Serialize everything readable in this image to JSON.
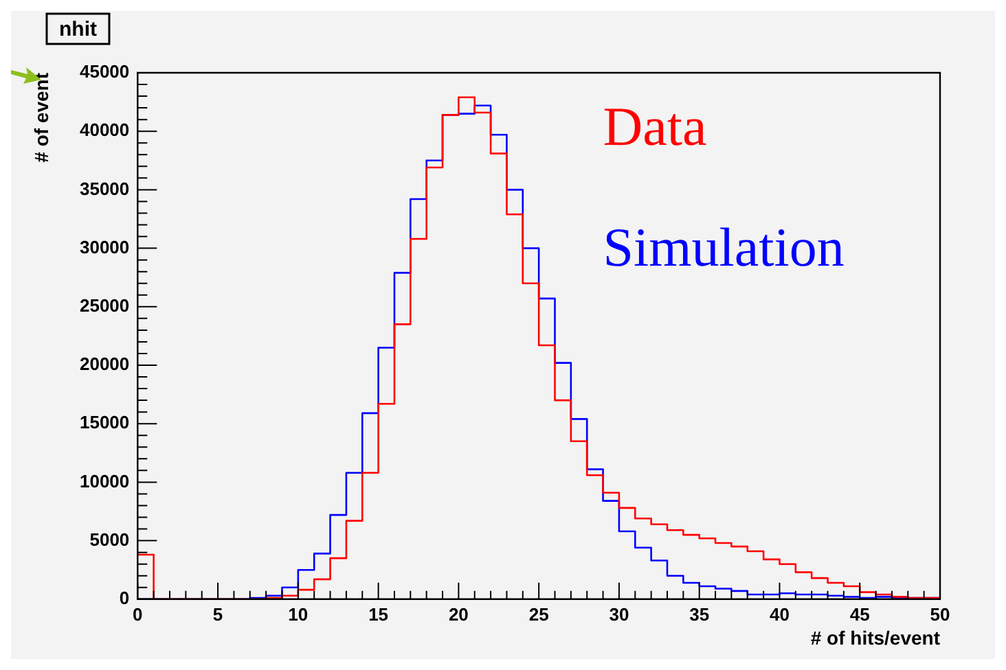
{
  "chart_data": {
    "type": "histogram",
    "title": "nhit",
    "xlabel": "# of hits/event",
    "ylabel": "# of event",
    "bins": [
      0,
      1,
      2,
      3,
      4,
      5,
      6,
      7,
      8,
      9,
      10,
      11,
      12,
      13,
      14,
      15,
      16,
      17,
      18,
      19,
      20,
      21,
      22,
      23,
      24,
      25,
      26,
      27,
      28,
      29,
      30,
      31,
      32,
      33,
      34,
      35,
      36,
      37,
      38,
      39,
      40,
      41,
      42,
      43,
      44,
      45,
      46,
      47,
      48,
      49,
      50
    ],
    "series": [
      {
        "name": "Data",
        "color": "#ff0000",
        "values": [
          3800,
          0,
          0,
          0,
          0,
          0,
          0,
          0,
          100,
          300,
          800,
          1700,
          3500,
          6700,
          10800,
          16700,
          23500,
          30800,
          36900,
          41400,
          42900,
          41600,
          38100,
          32900,
          27000,
          21700,
          17000,
          13500,
          10600,
          9100,
          7800,
          6900,
          6400,
          5900,
          5500,
          5200,
          4800,
          4500,
          4100,
          3400,
          3000,
          2300,
          1800,
          1400,
          1100,
          600,
          400,
          200,
          100,
          100
        ]
      },
      {
        "name": "Simulation",
        "color": "#0000ff",
        "values": [
          0,
          0,
          0,
          0,
          0,
          0,
          0,
          100,
          300,
          1000,
          2500,
          3900,
          7200,
          10800,
          15900,
          21500,
          27900,
          34200,
          37500,
          41400,
          41500,
          42200,
          39700,
          35000,
          30000,
          25700,
          20200,
          15400,
          11100,
          8400,
          5800,
          4400,
          3300,
          2000,
          1400,
          1100,
          900,
          700,
          400,
          400,
          500,
          400,
          400,
          300,
          200,
          100,
          200,
          100,
          100,
          100
        ]
      }
    ],
    "xlim": [
      0,
      50
    ],
    "xticks": [
      0,
      {
        "value": 1,
        "label": null
      },
      {
        "value": 2,
        "label": null
      },
      {
        "value": 3,
        "label": null
      },
      {
        "value": 4,
        "label": null
      },
      5,
      {
        "value": 6,
        "label": null
      },
      {
        "value": 7,
        "label": null
      },
      {
        "value": 8,
        "label": null
      },
      {
        "value": 9,
        "label": null
      },
      10,
      {
        "value": 11,
        "label": null
      },
      {
        "value": 12,
        "label": null
      },
      {
        "value": 13,
        "label": null
      },
      {
        "value": 14,
        "label": null
      },
      15,
      {
        "value": 16,
        "label": null
      },
      {
        "value": 17,
        "label": null
      },
      {
        "value": 18,
        "label": null
      },
      {
        "value": 19,
        "label": null
      },
      20,
      {
        "value": 21,
        "label": null
      },
      {
        "value": 22,
        "label": null
      },
      {
        "value": 23,
        "label": null
      },
      {
        "value": 24,
        "label": null
      },
      25,
      {
        "value": 26,
        "label": null
      },
      {
        "value": 27,
        "label": null
      },
      {
        "value": 28,
        "label": null
      },
      {
        "value": 29,
        "label": null
      },
      30,
      {
        "value": 31,
        "label": null
      },
      {
        "value": 32,
        "label": null
      },
      {
        "value": 33,
        "label": null
      },
      {
        "value": 34,
        "label": null
      },
      35,
      {
        "value": 36,
        "label": null
      },
      {
        "value": 37,
        "label": null
      },
      {
        "value": 38,
        "label": null
      },
      {
        "value": 39,
        "label": null
      },
      40,
      {
        "value": 41,
        "label": null
      },
      {
        "value": 42,
        "label": null
      },
      {
        "value": 43,
        "label": null
      },
      {
        "value": 44,
        "label": null
      },
      45,
      {
        "value": 46,
        "label": null
      },
      {
        "value": 47,
        "label": null
      },
      {
        "value": 48,
        "label": null
      },
      {
        "value": 49,
        "label": null
      },
      50
    ],
    "ylim": [
      0,
      45000
    ],
    "yticks": [
      0,
      {
        "value": 1000,
        "label": null
      },
      {
        "value": 2000,
        "label": null
      },
      {
        "value": 3000,
        "label": null
      },
      {
        "value": 4000,
        "label": null
      },
      5000,
      {
        "value": 6000,
        "label": null
      },
      {
        "value": 7000,
        "label": null
      },
      {
        "value": 8000,
        "label": null
      },
      {
        "value": 9000,
        "label": null
      },
      10000,
      {
        "value": 11000,
        "label": null
      },
      {
        "value": 12000,
        "label": null
      },
      {
        "value": 13000,
        "label": null
      },
      {
        "value": 14000,
        "label": null
      },
      15000,
      {
        "value": 16000,
        "label": null
      },
      {
        "value": 17000,
        "label": null
      },
      {
        "value": 18000,
        "label": null
      },
      {
        "value": 19000,
        "label": null
      },
      20000,
      {
        "value": 21000,
        "label": null
      },
      {
        "value": 22000,
        "label": null
      },
      {
        "value": 23000,
        "label": null
      },
      {
        "value": 24000,
        "label": null
      },
      25000,
      {
        "value": 26000,
        "label": null
      },
      {
        "value": 27000,
        "label": null
      },
      {
        "value": 28000,
        "label": null
      },
      {
        "value": 29000,
        "label": null
      },
      30000,
      {
        "value": 31000,
        "label": null
      },
      {
        "value": 32000,
        "label": null
      },
      {
        "value": 33000,
        "label": null
      },
      {
        "value": 34000,
        "label": null
      },
      35000,
      {
        "value": 36000,
        "label": null
      },
      {
        "value": 37000,
        "label": null
      },
      {
        "value": 38000,
        "label": null
      },
      {
        "value": 39000,
        "label": null
      },
      40000,
      {
        "value": 41000,
        "label": null
      },
      {
        "value": 42000,
        "label": null
      },
      {
        "value": 43000,
        "label": null
      },
      {
        "value": 44000,
        "label": null
      },
      45000
    ],
    "grid": false,
    "legend": "top right"
  }
}
